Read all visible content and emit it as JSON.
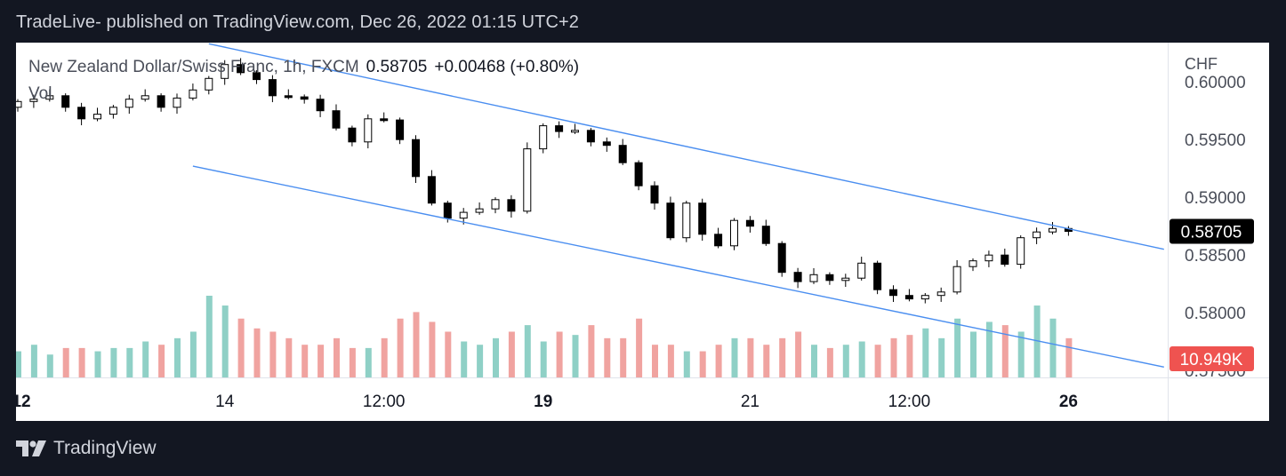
{
  "header": {
    "published_text": "TradeLive- published on TradingView.com, Dec 26, 2022 01:15 UTC+2"
  },
  "legend": {
    "symbol": "New Zealand Dollar/Swiss Franc, 1h, FXCM",
    "price": "0.58705",
    "change": "+0.00468 (+0.80%)",
    "volume_label": "Vol"
  },
  "footer": {
    "brand": "TradingView",
    "logo_icon": "tradingview-logo-icon"
  },
  "chart_data": {
    "type": "candlestick",
    "title": "New Zealand Dollar/Swiss Franc, 1h, FXCM",
    "currency_label": "CHF",
    "y_ticks": [
      "0.60000",
      "0.59500",
      "0.59000",
      "0.58500",
      "0.58000",
      "0.57500"
    ],
    "y_tick_values": [
      0.6,
      0.595,
      0.59,
      0.585,
      0.58,
      0.575
    ],
    "ylim": [
      0.5744,
      0.6034
    ],
    "x_ticks": [
      {
        "label": "12",
        "bold": true,
        "index": 0
      },
      {
        "label": "14",
        "bold": false,
        "index": 13
      },
      {
        "label": "12:00",
        "bold": false,
        "index": 23
      },
      {
        "label": "19",
        "bold": true,
        "index": 33
      },
      {
        "label": "21",
        "bold": false,
        "index": 46
      },
      {
        "label": "12:00",
        "bold": false,
        "index": 56
      },
      {
        "label": "26",
        "bold": true,
        "index": 66
      }
    ],
    "last_price_label": "0.58705",
    "last_price_value": 0.58705,
    "volume_label": "10.949K",
    "volume_value": 10.949,
    "colors": {
      "line": "#4a8ef0",
      "up_vol": "#8fd0c6",
      "down_vol": "#f0a3a0",
      "price_tag": "#000000",
      "vol_tag": "#ef5350",
      "candle": "#000000"
    },
    "channel": {
      "upper": [
        [
          12,
          0.6033
        ],
        [
          72,
          0.5855
        ]
      ],
      "lower": [
        [
          11,
          0.5927
        ],
        [
          72,
          0.5753
        ]
      ]
    },
    "close": [
      0.5983,
      0.5985,
      0.5988,
      0.5978,
      0.5968,
      0.5972,
      0.5978,
      0.5985,
      0.5988,
      0.5978,
      0.5986,
      0.5993,
      0.6003,
      0.6015,
      0.6008,
      0.6002,
      0.5988,
      0.5987,
      0.5985,
      0.5975,
      0.596,
      0.5948,
      0.5968,
      0.5967,
      0.595,
      0.5918,
      0.5895,
      0.5882,
      0.5887,
      0.589,
      0.5898,
      0.5888,
      0.5942,
      0.5962,
      0.5957,
      0.5958,
      0.5948,
      0.5945,
      0.593,
      0.591,
      0.5895,
      0.5865,
      0.5895,
      0.5868,
      0.5858,
      0.588,
      0.5875,
      0.586,
      0.5835,
      0.5827,
      0.5833,
      0.5828,
      0.583,
      0.5843,
      0.582,
      0.5815,
      0.5812,
      0.5815,
      0.5818,
      0.584,
      0.5845,
      0.585,
      0.5842,
      0.5865,
      0.587,
      0.5873,
      0.58705
    ],
    "volume": [
      8,
      10,
      7,
      9,
      9,
      8,
      9,
      9,
      11,
      10,
      12,
      14,
      25,
      22,
      18,
      15,
      14,
      12,
      10,
      10,
      12,
      9,
      9,
      12,
      18,
      20,
      17,
      14,
      11,
      10,
      12,
      14,
      16,
      11,
      14,
      13,
      16,
      12,
      12,
      18,
      10,
      10,
      8,
      8,
      10,
      12,
      12,
      10,
      12,
      14,
      10,
      9,
      10,
      11,
      10,
      12,
      13,
      15,
      12,
      18,
      14,
      17,
      16,
      14,
      22,
      18,
      12
    ]
  }
}
